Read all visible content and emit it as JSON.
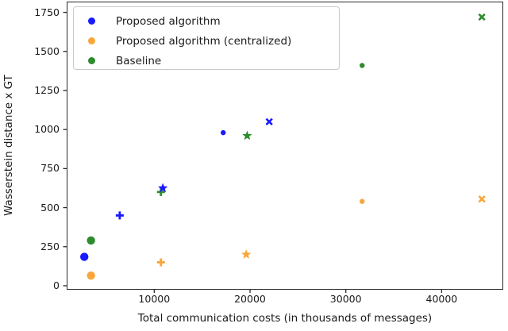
{
  "figure": {
    "background": "#ffffff",
    "text_color": "#1a1a1a"
  },
  "legend": {
    "items": [
      {
        "label": "Proposed algorithm"
      },
      {
        "label": "Proposed algorithm (centralized)"
      },
      {
        "label": "Baseline"
      }
    ]
  },
  "chart_data": {
    "type": "scatter",
    "title": "",
    "xlabel": "Total communication costs (in thousands of messages)",
    "ylabel": "Wasserstein distance x GT",
    "xlim": [
      860,
      46430
    ],
    "ylim": [
      -23,
      1819
    ],
    "x_ticks": [
      10000,
      20000,
      30000,
      40000
    ],
    "y_ticks": [
      0,
      250,
      500,
      750,
      1000,
      1250,
      1500,
      1750
    ],
    "grid": false,
    "legend_position": "upper left",
    "marker_note": "marker types per point: circle=large filled dot, plus=+, star=5-point star, dot=small filled dot, x=X cross",
    "series": [
      {
        "name": "Proposed algorithm",
        "color": "#1a1aff",
        "points": [
          {
            "x": 2700,
            "y": 185,
            "marker": "circle"
          },
          {
            "x": 6400,
            "y": 450,
            "marker": "plus"
          },
          {
            "x": 10900,
            "y": 625,
            "marker": "star"
          },
          {
            "x": 17200,
            "y": 980,
            "marker": "dot"
          },
          {
            "x": 22000,
            "y": 1050,
            "marker": "x"
          }
        ]
      },
      {
        "name": "Proposed algorithm (centralized)",
        "color": "#f8a63b",
        "points": [
          {
            "x": 3400,
            "y": 65,
            "marker": "circle"
          },
          {
            "x": 10700,
            "y": 150,
            "marker": "plus"
          },
          {
            "x": 19600,
            "y": 200,
            "marker": "star"
          },
          {
            "x": 31700,
            "y": 540,
            "marker": "dot"
          },
          {
            "x": 44200,
            "y": 555,
            "marker": "x"
          }
        ]
      },
      {
        "name": "Baseline",
        "color": "#2e8b2e",
        "points": [
          {
            "x": 3400,
            "y": 290,
            "marker": "circle"
          },
          {
            "x": 10700,
            "y": 600,
            "marker": "plus"
          },
          {
            "x": 19700,
            "y": 960,
            "marker": "star"
          },
          {
            "x": 31700,
            "y": 1410,
            "marker": "dot"
          },
          {
            "x": 44200,
            "y": 1720,
            "marker": "x"
          }
        ]
      }
    ]
  }
}
